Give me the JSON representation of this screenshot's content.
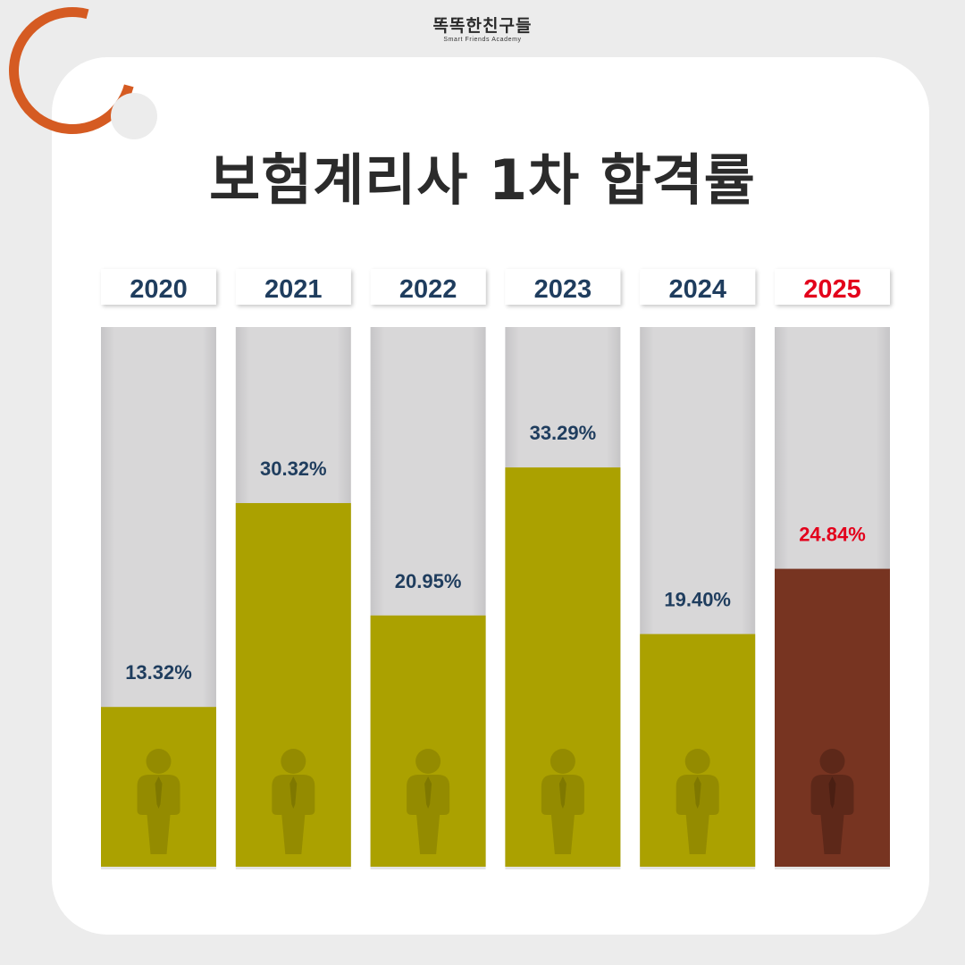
{
  "logo": {
    "main": "똑똑한친구들",
    "sub": "Smart Friends Academy"
  },
  "title": "보험계리사 1차 합격률",
  "colors": {
    "accent_ring": "#d55b22",
    "bar_fill": "#aba100",
    "bar_fill_highlight": "#773421",
    "label_text": "#1f3d5e",
    "label_highlight": "#e3001b",
    "track": "#d8d7d8",
    "person_icon": "#948b00",
    "person_icon_highlight": "#5d2819"
  },
  "icons": {
    "person": "person-icon",
    "ring": "ring-decoration"
  },
  "chart_data": {
    "type": "bar",
    "title": "보험계리사 1차 합격률",
    "categories": [
      "2020",
      "2021",
      "2022",
      "2023",
      "2024",
      "2025"
    ],
    "values": [
      13.32,
      30.32,
      20.95,
      33.29,
      19.4,
      24.84
    ],
    "value_labels": [
      "13.32%",
      "30.32%",
      "20.95%",
      "33.29%",
      "19.40%",
      "24.84%"
    ],
    "highlight_category": "2025",
    "ylim": [
      0,
      45
    ],
    "xlabel": "",
    "ylabel": "",
    "grid": false,
    "legend": "none"
  }
}
